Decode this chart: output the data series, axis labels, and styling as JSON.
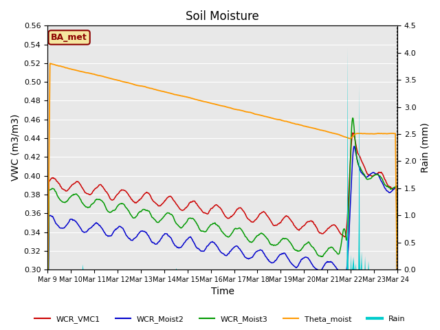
{
  "title": "Soil Moisture",
  "xlabel": "Time",
  "ylabel_left": "VWC (m3/m3)",
  "ylabel_right": "Rain (mm)",
  "ylim_left": [
    0.3,
    0.56
  ],
  "ylim_right": [
    0.0,
    4.5
  ],
  "yticks_left": [
    0.3,
    0.32,
    0.34,
    0.36,
    0.38,
    0.4,
    0.42,
    0.44,
    0.46,
    0.48,
    0.5,
    0.52,
    0.54,
    0.56
  ],
  "yticks_right": [
    0.0,
    0.5,
    1.0,
    1.5,
    2.0,
    2.5,
    3.0,
    3.5,
    4.0,
    4.5
  ],
  "xtick_labels": [
    "Mar 9",
    "Mar 10",
    "Mar 11",
    "Mar 12",
    "Mar 13",
    "Mar 14",
    "Mar 15",
    "Mar 16",
    "Mar 17",
    "Mar 18",
    "Mar 19",
    "Mar 20",
    "Mar 21",
    "Mar 22",
    "Mar 23",
    "Mar 24"
  ],
  "colors": {
    "WCR_VMC1": "#cc0000",
    "WCR_Moist2": "#0000cc",
    "WCR_Moist3": "#009900",
    "Theta_moist": "#ff9900",
    "Rain": "#00cccc"
  },
  "annotation_box": "BA_met",
  "annotation_color": "#8b0000",
  "annotation_bg": "#f5e6a0",
  "plot_bg_color": "#e8e8e8",
  "grid_color": "#ffffff",
  "title_fontsize": 12,
  "axis_fontsize": 10,
  "tick_fontsize": 8
}
